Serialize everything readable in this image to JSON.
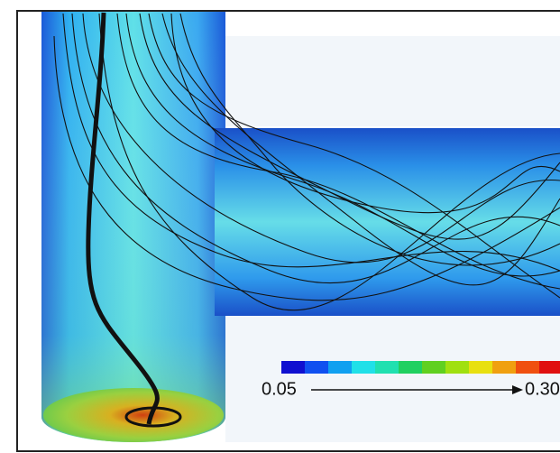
{
  "colorbar": {
    "min_label": "0.05",
    "max_label": "0.30"
  }
}
